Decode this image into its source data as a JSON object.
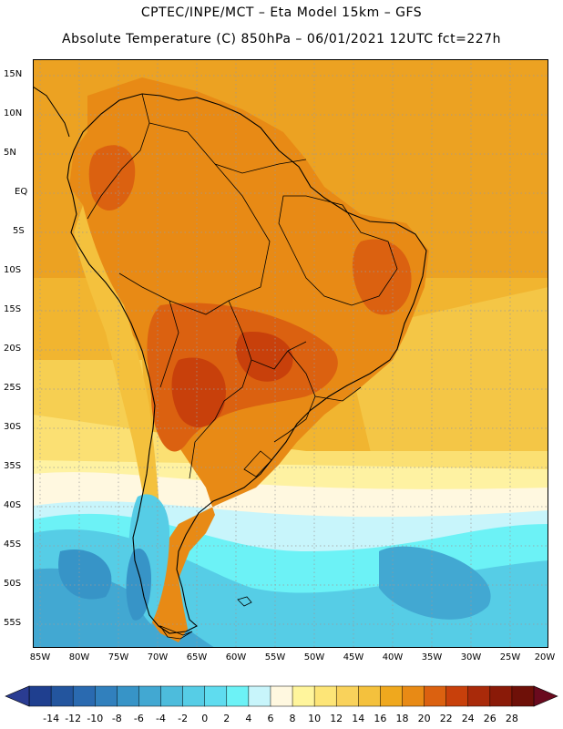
{
  "header": {
    "line1": "CPTEC/INPE/MCT –  Eta Model 15km – GFS",
    "line2": "Absolute Temperature (C) 850hPa – 06/01/2021 12UTC fct=227h"
  },
  "map": {
    "lat_labels": [
      "15N",
      "10N",
      "5N",
      "EQ",
      "5S",
      "10S",
      "15S",
      "20S",
      "25S",
      "30S",
      "35S",
      "40S",
      "45S",
      "50S",
      "55S"
    ],
    "lon_labels": [
      "85W",
      "80W",
      "75W",
      "70W",
      "65W",
      "60W",
      "55W",
      "50W",
      "45W",
      "40W",
      "35W",
      "30W",
      "25W",
      "20W"
    ]
  },
  "colorbar": {
    "labels": [
      "-14",
      "-12",
      "-10",
      "-8",
      "-6",
      "-4",
      "-2",
      "0",
      "2",
      "4",
      "6",
      "8",
      "10",
      "12",
      "14",
      "16",
      "18",
      "20",
      "22",
      "24",
      "26",
      "28"
    ],
    "colors": [
      "#1f3f8f",
      "#23559e",
      "#2a6ab0",
      "#3180bd",
      "#3794c7",
      "#42a8d2",
      "#4dbcdc",
      "#56cde6",
      "#5fdcef",
      "#6cf2f6",
      "#c8f5fb",
      "#fff8e0",
      "#fff59c",
      "#fde577",
      "#f9d25b",
      "#f4c13d",
      "#efa81e",
      "#e88a15",
      "#db6110",
      "#c8400b",
      "#a92a0a",
      "#8a1a08",
      "#6e1008"
    ],
    "under_color": "#2a3c92",
    "over_color": "#6a0a1e"
  }
}
